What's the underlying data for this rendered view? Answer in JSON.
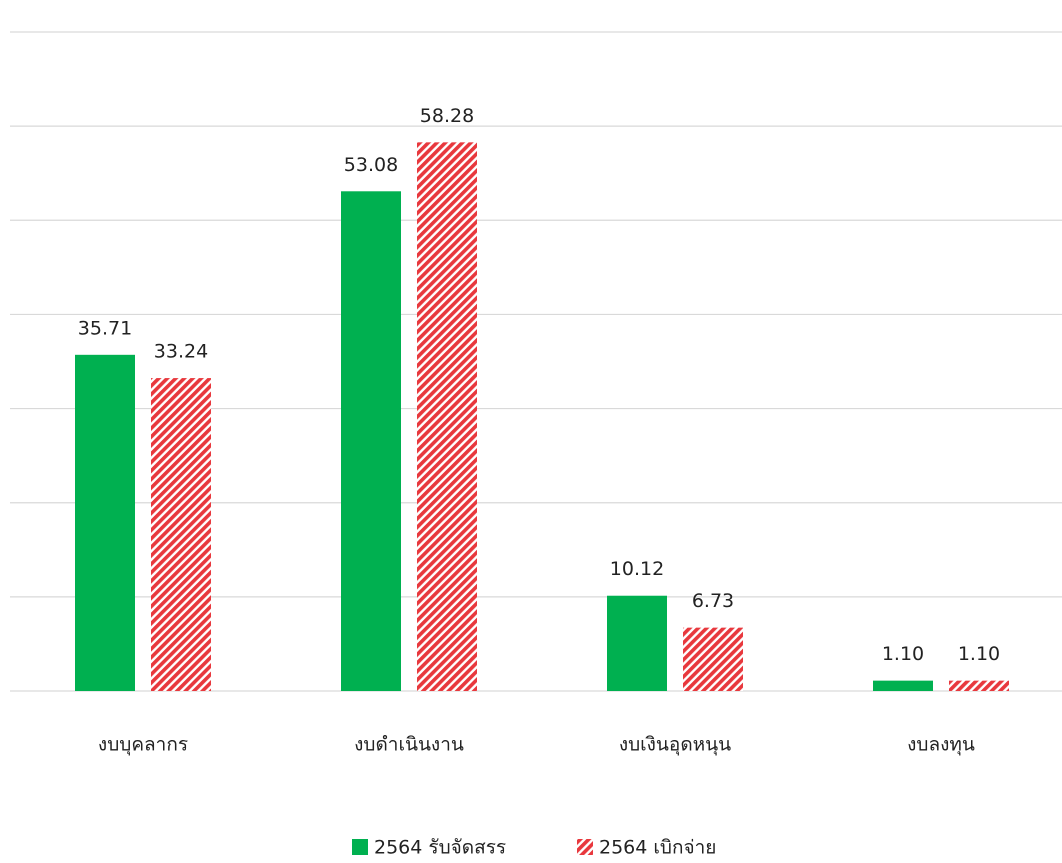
{
  "chart_data": {
    "type": "bar",
    "categories": [
      "งบบุคลากร",
      "งบดำเนินงาน",
      "งบเงินอุดหนุน",
      "งบลงทุน"
    ],
    "series": [
      {
        "name": "2564 รับจัดสรร",
        "color": "#00b050",
        "values": [
          35.71,
          53.08,
          10.12,
          1.1
        ],
        "value_labels": [
          "35.71",
          "53.08",
          "10.12",
          "1.10"
        ]
      },
      {
        "name": "2564 เบิกจ่าย",
        "color": "#e8383d",
        "values": [
          33.24,
          58.28,
          6.73,
          1.1
        ],
        "value_labels": [
          "33.24",
          "58.28",
          "6.73",
          "1.10"
        ]
      }
    ],
    "ylim": [
      0,
      70
    ],
    "yticks": [
      0,
      10,
      20,
      30,
      40,
      50,
      60,
      70
    ],
    "grid": true,
    "legend": "bottom"
  }
}
